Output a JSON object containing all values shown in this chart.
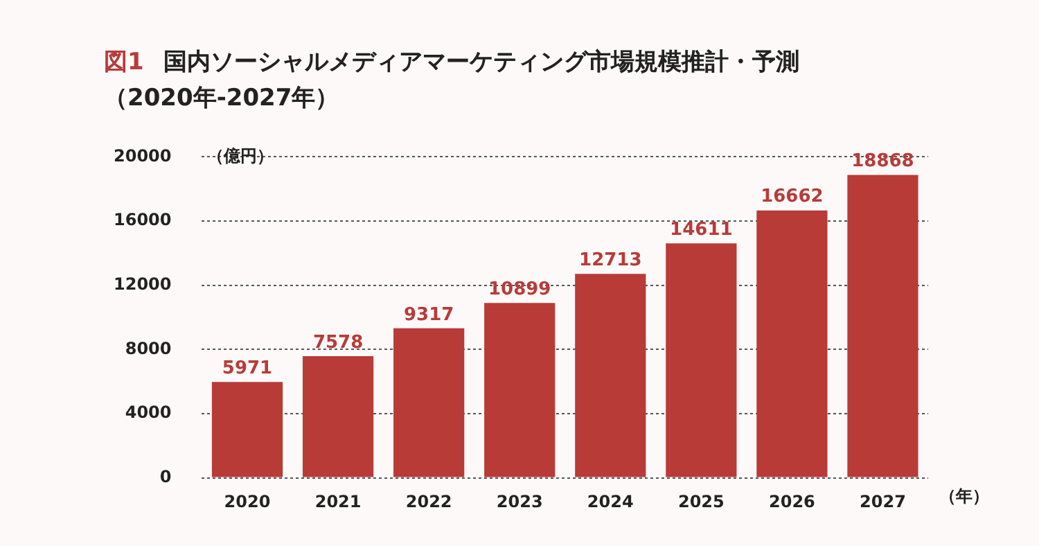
{
  "chart_data": {
    "type": "bar",
    "title": "国内ソーシャルメディアマーケティング市場規模推計・予測（2020年-2027年）",
    "annotations": [
      "図1"
    ],
    "ylabel": "（億円）",
    "xlabel": "（年）",
    "categories": [
      "2020",
      "2021",
      "2022",
      "2023",
      "2024",
      "2025",
      "2026",
      "2027"
    ],
    "values": [
      5971,
      7578,
      9317,
      10899,
      12713,
      14611,
      16662,
      18868
    ],
    "color": "#b83b38",
    "ylim": [
      0,
      20000
    ],
    "yticks": [
      0,
      4000,
      8000,
      12000,
      16000,
      20000
    ],
    "grid": "y",
    "data_labels": true,
    "legend": false
  }
}
